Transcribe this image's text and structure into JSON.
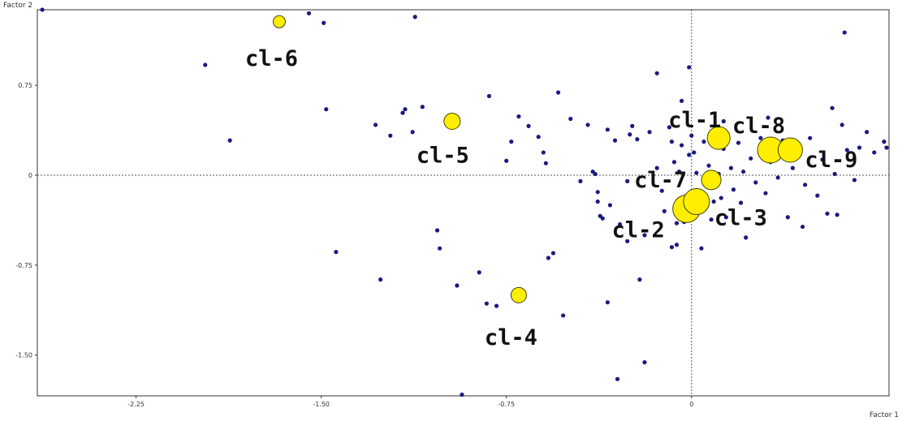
{
  "chart_data": {
    "type": "scatter",
    "title": "",
    "xlabel": "Factor 1",
    "ylabel": "Factor 2",
    "xlim": [
      -2.65,
      0.8
    ],
    "ylim": [
      -1.84,
      1.38
    ],
    "xticks": [
      -2.25,
      -1.5,
      -0.75,
      0
    ],
    "yticks": [
      0.75,
      0,
      -0.75,
      -1.5
    ],
    "tick_labels": {
      "x": [
        "-2.25",
        "-1.50",
        "-0.75",
        "0"
      ],
      "y": [
        "0.75",
        "0",
        "-0.75",
        "-1.50"
      ]
    },
    "reference_lines": {
      "x": 0,
      "y": 0,
      "style": "dotted"
    },
    "colors": {
      "points": "#1a1a80",
      "clusters": "#ffee00",
      "cluster_stroke": "#444400",
      "frame": "#333333"
    },
    "series": [
      {
        "kind": "observations",
        "points": [
          [
            -2.63,
            1.38
          ],
          [
            -1.97,
            0.92
          ],
          [
            -1.87,
            0.29
          ],
          [
            -1.55,
            1.35
          ],
          [
            -1.49,
            1.27
          ],
          [
            -1.48,
            0.55
          ],
          [
            -1.44,
            -0.64
          ],
          [
            -1.28,
            0.42
          ],
          [
            -1.26,
            -0.87
          ],
          [
            -1.22,
            0.33
          ],
          [
            -1.17,
            0.52
          ],
          [
            -1.16,
            0.55
          ],
          [
            -1.13,
            0.36
          ],
          [
            -1.12,
            1.32
          ],
          [
            -1.09,
            0.57
          ],
          [
            -1.03,
            -0.46
          ],
          [
            -1.02,
            -0.61
          ],
          [
            -0.95,
            -0.92
          ],
          [
            -0.93,
            -1.83
          ],
          [
            -0.86,
            -0.81
          ],
          [
            -0.83,
            -1.07
          ],
          [
            -0.82,
            0.66
          ],
          [
            -0.79,
            -1.09
          ],
          [
            -0.75,
            0.12
          ],
          [
            -0.73,
            0.28
          ],
          [
            -0.7,
            0.49
          ],
          [
            -0.66,
            0.41
          ],
          [
            -0.62,
            0.32
          ],
          [
            -0.6,
            0.19
          ],
          [
            -0.59,
            0.1
          ],
          [
            -0.58,
            -0.69
          ],
          [
            -0.56,
            -0.65
          ],
          [
            -0.54,
            0.69
          ],
          [
            -0.52,
            -1.17
          ],
          [
            -0.49,
            0.47
          ],
          [
            -0.45,
            -0.05
          ],
          [
            -0.42,
            0.42
          ],
          [
            -0.4,
            0.03
          ],
          [
            -0.39,
            0.01
          ],
          [
            -0.38,
            -0.14
          ],
          [
            -0.38,
            -0.22
          ],
          [
            -0.37,
            -0.34
          ],
          [
            -0.36,
            -0.36
          ],
          [
            -0.34,
            0.38
          ],
          [
            -0.33,
            -0.25
          ],
          [
            -0.31,
            0.29
          ],
          [
            -0.3,
            -1.7
          ],
          [
            -0.29,
            -0.41
          ],
          [
            -0.26,
            -0.05
          ],
          [
            -0.25,
            0.34
          ],
          [
            -0.24,
            0.41
          ],
          [
            -0.22,
            0.3
          ],
          [
            -0.21,
            -0.87
          ],
          [
            -0.19,
            -1.56
          ],
          [
            -0.17,
            0.36
          ],
          [
            -0.14,
            0.06
          ],
          [
            -0.12,
            -0.13
          ],
          [
            -0.11,
            -0.3
          ],
          [
            -0.09,
            0.4
          ],
          [
            -0.08,
            0.28
          ],
          [
            -0.07,
            0.11
          ],
          [
            -0.06,
            -0.58
          ],
          [
            -0.05,
            0.03
          ],
          [
            -0.04,
            0.25
          ],
          [
            -0.03,
            -0.39
          ],
          [
            -0.02,
            -0.17
          ],
          [
            -0.01,
            0.17
          ],
          [
            0.0,
            0.33
          ],
          [
            0.01,
            0.19
          ],
          [
            0.02,
            0.02
          ],
          [
            0.03,
            -0.24
          ],
          [
            0.04,
            -0.61
          ],
          [
            0.05,
            0.28
          ],
          [
            0.07,
            0.08
          ],
          [
            0.08,
            -0.37
          ],
          [
            0.09,
            0.36
          ],
          [
            0.11,
            0.01
          ],
          [
            0.12,
            -0.19
          ],
          [
            0.13,
            0.22
          ],
          [
            0.14,
            -0.35
          ],
          [
            0.16,
            0.06
          ],
          [
            0.17,
            -0.12
          ],
          [
            0.19,
            0.27
          ],
          [
            0.2,
            -0.23
          ],
          [
            0.21,
            0.03
          ],
          [
            0.22,
            -0.52
          ],
          [
            0.24,
            0.14
          ],
          [
            0.26,
            -0.06
          ],
          [
            0.28,
            0.31
          ],
          [
            0.3,
            -0.15
          ],
          [
            0.32,
            0.11
          ],
          [
            0.35,
            -0.02
          ],
          [
            0.37,
            0.29
          ],
          [
            0.39,
            -0.35
          ],
          [
            0.41,
            0.06
          ],
          [
            0.44,
            0.18
          ],
          [
            0.46,
            -0.08
          ],
          [
            0.48,
            0.31
          ],
          [
            0.51,
            -0.17
          ],
          [
            0.53,
            0.13
          ],
          [
            0.55,
            -0.32
          ],
          [
            0.57,
            0.56
          ],
          [
            0.58,
            0.01
          ],
          [
            0.59,
            -0.33
          ],
          [
            0.61,
            0.42
          ],
          [
            0.63,
            0.21
          ],
          [
            0.66,
            -0.04
          ],
          [
            0.68,
            0.23
          ],
          [
            0.71,
            0.36
          ],
          [
            0.74,
            0.19
          ],
          [
            0.78,
            0.28
          ],
          [
            0.79,
            0.23
          ],
          [
            0.62,
            1.19
          ],
          [
            -0.01,
            0.9
          ],
          [
            -0.14,
            0.85
          ],
          [
            -0.06,
            -0.4
          ],
          [
            -0.19,
            -0.5
          ],
          [
            -0.08,
            -0.6
          ],
          [
            -0.26,
            -0.55
          ],
          [
            -0.34,
            -1.06
          ],
          [
            0.13,
            0.45
          ],
          [
            0.31,
            0.48
          ],
          [
            0.09,
            -0.22
          ],
          [
            0.45,
            -0.43
          ],
          [
            -0.04,
            0.62
          ]
        ]
      },
      {
        "kind": "cluster_centroids",
        "points": [
          {
            "label": "cl-1",
            "x": 0.11,
            "y": 0.31,
            "size": 1.0
          },
          {
            "label": "cl-2",
            "x": -0.02,
            "y": -0.28,
            "size": 1.3
          },
          {
            "label": "cl-3",
            "x": 0.02,
            "y": -0.22,
            "size": 1.2
          },
          {
            "label": "cl-4",
            "x": -0.7,
            "y": -1.0,
            "size": 0.55
          },
          {
            "label": "cl-5",
            "x": -0.97,
            "y": 0.45,
            "size": 0.6
          },
          {
            "label": "cl-6",
            "x": -1.67,
            "y": 1.28,
            "size": 0.35
          },
          {
            "label": "cl-7",
            "x": 0.08,
            "y": -0.04,
            "size": 0.8
          },
          {
            "label": "cl-8",
            "x": 0.32,
            "y": 0.21,
            "size": 1.2
          },
          {
            "label": "cl-9",
            "x": 0.4,
            "y": 0.21,
            "size": 1.1
          }
        ]
      }
    ]
  }
}
